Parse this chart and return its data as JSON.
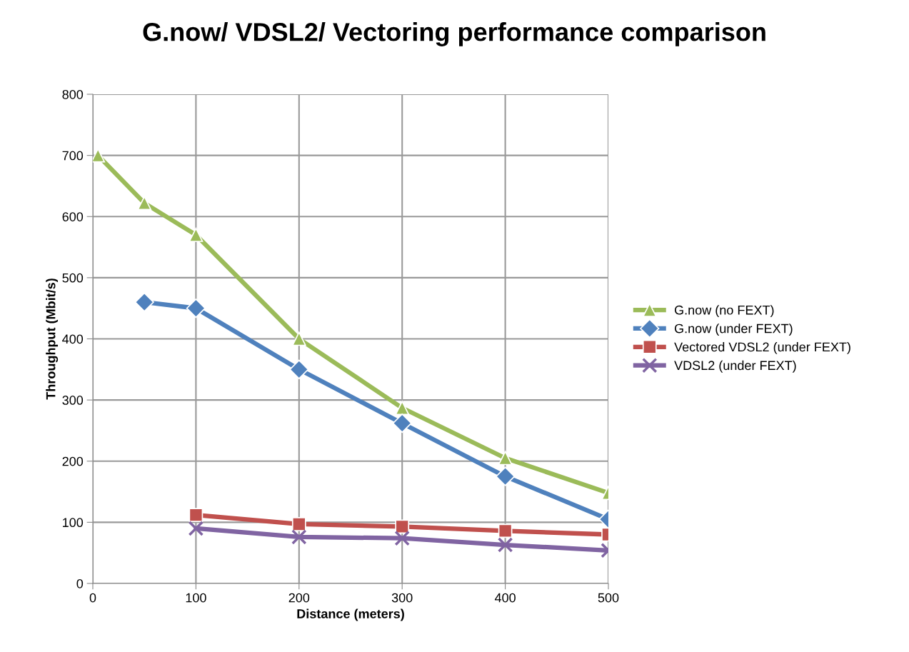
{
  "chart_data": {
    "type": "line",
    "title": "G.now/ VDSL2/ Vectoring performance comparison",
    "xlabel": "Distance (meters)",
    "ylabel": "Throughput (Mbit/s)",
    "xlim": [
      0,
      500
    ],
    "xticks": [
      0,
      100,
      200,
      300,
      400,
      500
    ],
    "ylim": [
      0,
      800
    ],
    "yticks": [
      0,
      100,
      200,
      300,
      400,
      500,
      600,
      700,
      800
    ],
    "grid": true,
    "legend": "right",
    "line_style": "solid",
    "series": [
      {
        "name": "G.now (no FEXT)",
        "color": "#9bbb59",
        "marker": "triangle",
        "x": [
          5,
          50,
          100,
          200,
          300,
          400,
          500
        ],
        "values": [
          700,
          622,
          570,
          400,
          287,
          205,
          148
        ]
      },
      {
        "name": "G.now (under FEXT)",
        "color": "#4f81bd",
        "marker": "diamond",
        "x": [
          50,
          100,
          200,
          300,
          400,
          500
        ],
        "values": [
          460,
          450,
          350,
          262,
          175,
          105
        ]
      },
      {
        "name": "Vectored VDSL2 (under FEXT)",
        "color": "#c0504d",
        "marker": "square",
        "x": [
          100,
          200,
          300,
          400,
          500
        ],
        "values": [
          112,
          97,
          93,
          86,
          80
        ]
      },
      {
        "name": "VDSL2 (under FEXT)",
        "color": "#8064a2",
        "marker": "cross",
        "x": [
          100,
          200,
          300,
          400,
          500
        ],
        "values": [
          90,
          76,
          74,
          63,
          54
        ]
      }
    ]
  }
}
